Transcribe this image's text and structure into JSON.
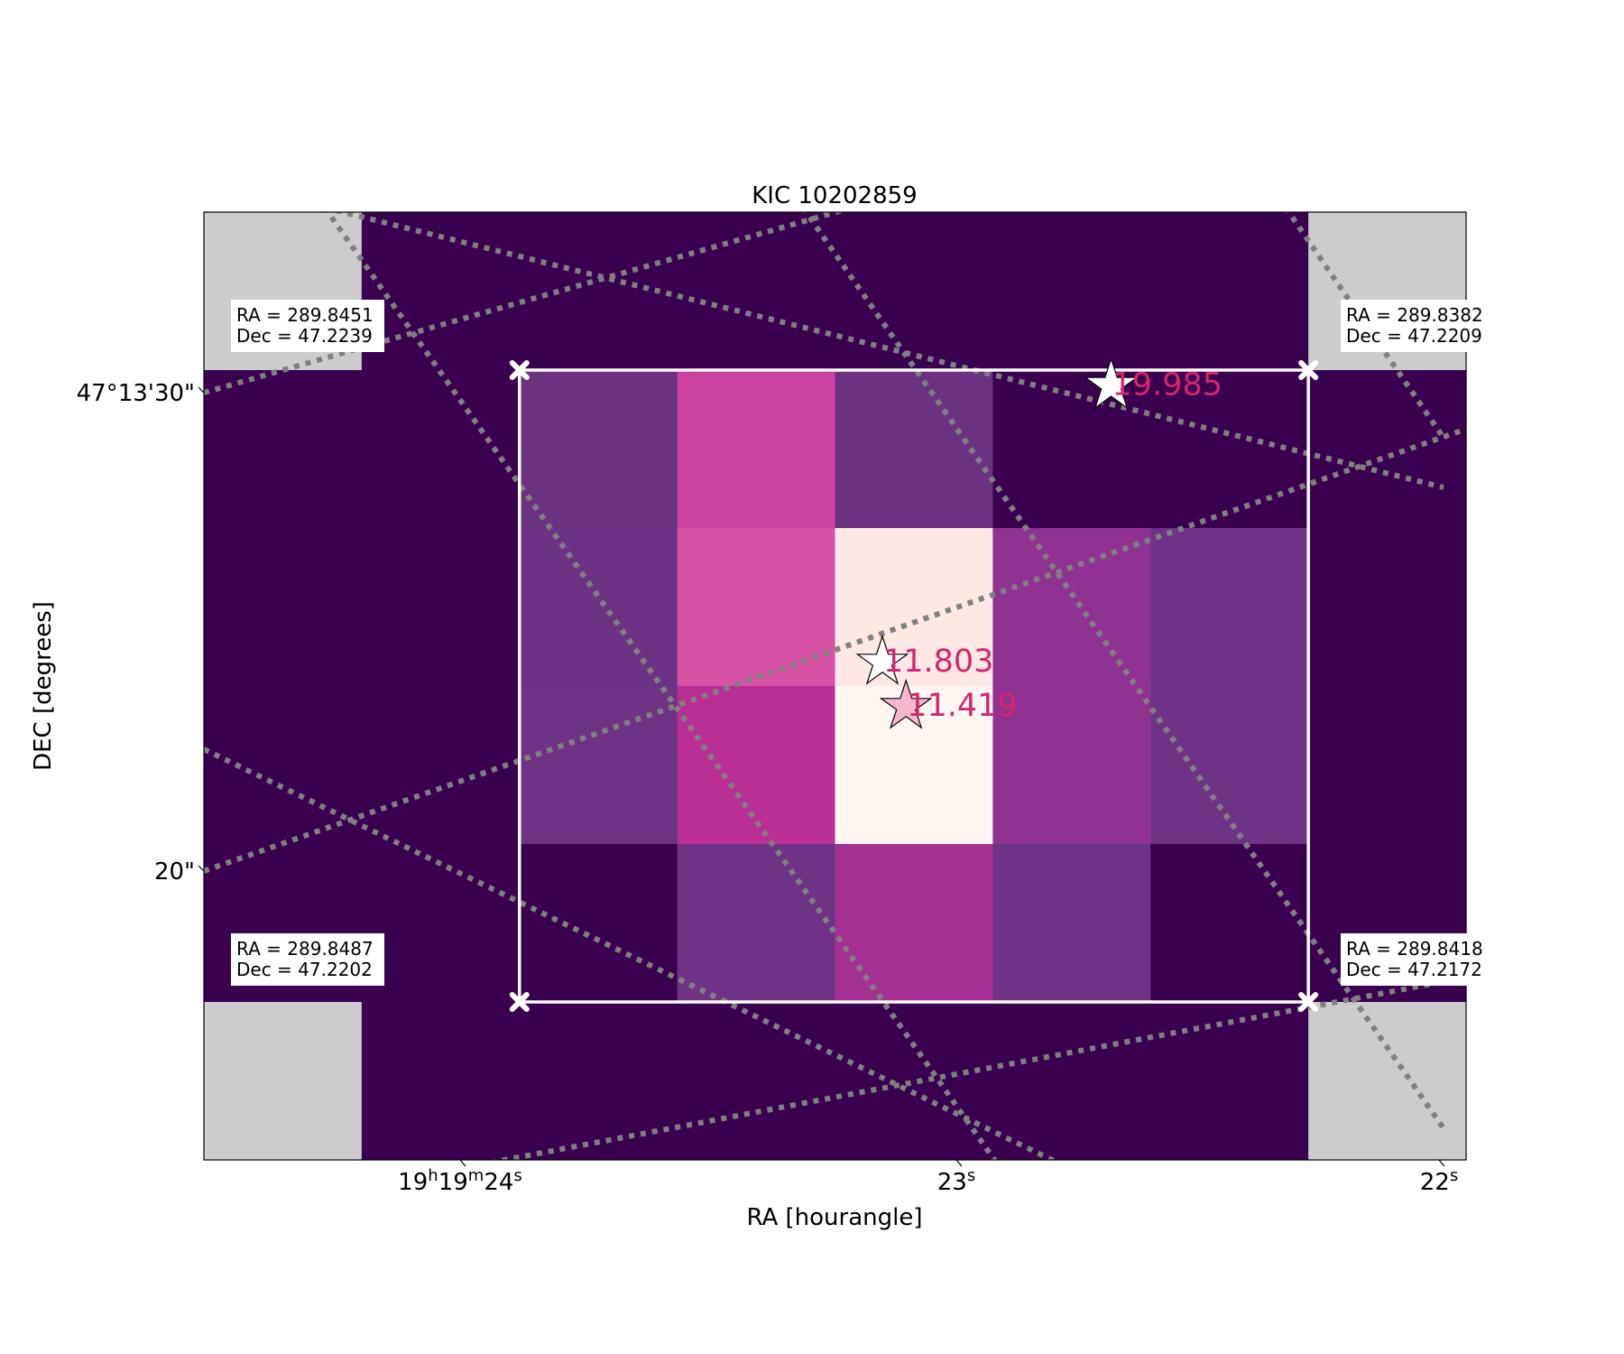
{
  "chart_data": {
    "type": "heatmap",
    "title": "KIC 10202859",
    "xlabel": "RA [hourangle]",
    "ylabel": "DEC [degrees]",
    "x_ticks": [
      {
        "main": "19",
        "h": "h",
        "m1": "19",
        "mu": "m",
        "s": "24",
        "su": "s"
      },
      {
        "main": "",
        "h": "",
        "m1": "",
        "mu": "",
        "s": "23",
        "su": "s"
      },
      {
        "main": "",
        "h": "",
        "m1": "",
        "mu": "",
        "s": "22",
        "su": "s"
      }
    ],
    "y_ticks": [
      "47°13'30\"",
      "20\""
    ],
    "pixel_grid": {
      "rows": 6,
      "cols": 8,
      "colors": [
        [
          "#cccccc",
          "#3a0150",
          "#3a0150",
          "#3a0150",
          "#3a0150",
          "#3a0150",
          "#3a0150",
          "#cccccc"
        ],
        [
          "#3a0150",
          "#3a0150",
          "#6b3282",
          "#cb439f",
          "#6b3282",
          "#3a0150",
          "#3a0150",
          "#3a0150"
        ],
        [
          "#3a0150",
          "#3a0150",
          "#6c3384",
          "#d752a5",
          "#fde8e4",
          "#903292",
          "#6e3386",
          "#3a0150"
        ],
        [
          "#3a0150",
          "#3a0150",
          "#6f3386",
          "#b92f94",
          "#fff6f1",
          "#903292",
          "#6f3386",
          "#3a0150"
        ],
        [
          "#3a0150",
          "#3a0150",
          "#3a0150",
          "#6f3386",
          "#a53093",
          "#6f3386",
          "#3a0150",
          "#3a0150"
        ],
        [
          "#cccccc",
          "#3a0150",
          "#3a0150",
          "#3a0150",
          "#3a0150",
          "#3a0150",
          "#3a0150",
          "#cccccc"
        ]
      ]
    },
    "aperture": {
      "col_start": 2,
      "col_end": 7,
      "row_start": 1,
      "row_end": 5,
      "color": "#ffffff"
    },
    "corner_labels": [
      {
        "corner": "top-left",
        "ra": "RA = 289.8451",
        "dec": "Dec = 47.2239"
      },
      {
        "corner": "top-right",
        "ra": "RA = 289.8382",
        "dec": "Dec = 47.2209"
      },
      {
        "corner": "bottom-left",
        "ra": "RA = 289.8487",
        "dec": "Dec = 47.2202"
      },
      {
        "corner": "bottom-right",
        "ra": "RA = 289.8418",
        "dec": "Dec = 47.2172"
      }
    ],
    "stars": [
      {
        "label": "19.985",
        "col": 5.75,
        "row": 1.1,
        "fill": "#ffffff",
        "size": "large"
      },
      {
        "label": "11.803",
        "col": 4.3,
        "row": 2.85,
        "fill": "#ffffff",
        "size": "medium"
      },
      {
        "label": "11.419",
        "col": 4.45,
        "row": 3.13,
        "fill": "#f7b6cf",
        "size": "medium"
      }
    ],
    "star_label_color": "#d6246e",
    "grid": "dotted",
    "grid_color": "#808080"
  }
}
